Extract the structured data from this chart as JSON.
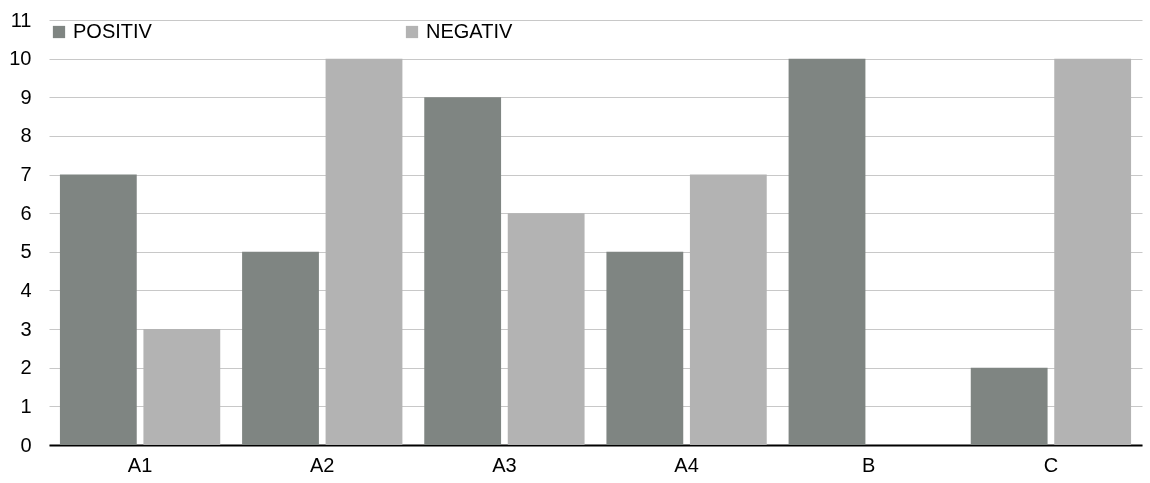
{
  "chart_data": {
    "type": "bar",
    "categories": [
      "A1",
      "A2",
      "A3",
      "A4",
      "B",
      "C"
    ],
    "series": [
      {
        "name": "POSITIV",
        "color": "#7f8582",
        "values": [
          7,
          5,
          9,
          5,
          10,
          2
        ]
      },
      {
        "name": "NEGATIV",
        "color": "#b3b3b3",
        "values": [
          3,
          10,
          6,
          7,
          0,
          10
        ]
      }
    ],
    "ylim": [
      0,
      11
    ],
    "yticks": [
      0,
      1,
      2,
      3,
      4,
      5,
      6,
      7,
      8,
      9,
      10,
      11
    ],
    "grid": "y",
    "legend": "top"
  }
}
